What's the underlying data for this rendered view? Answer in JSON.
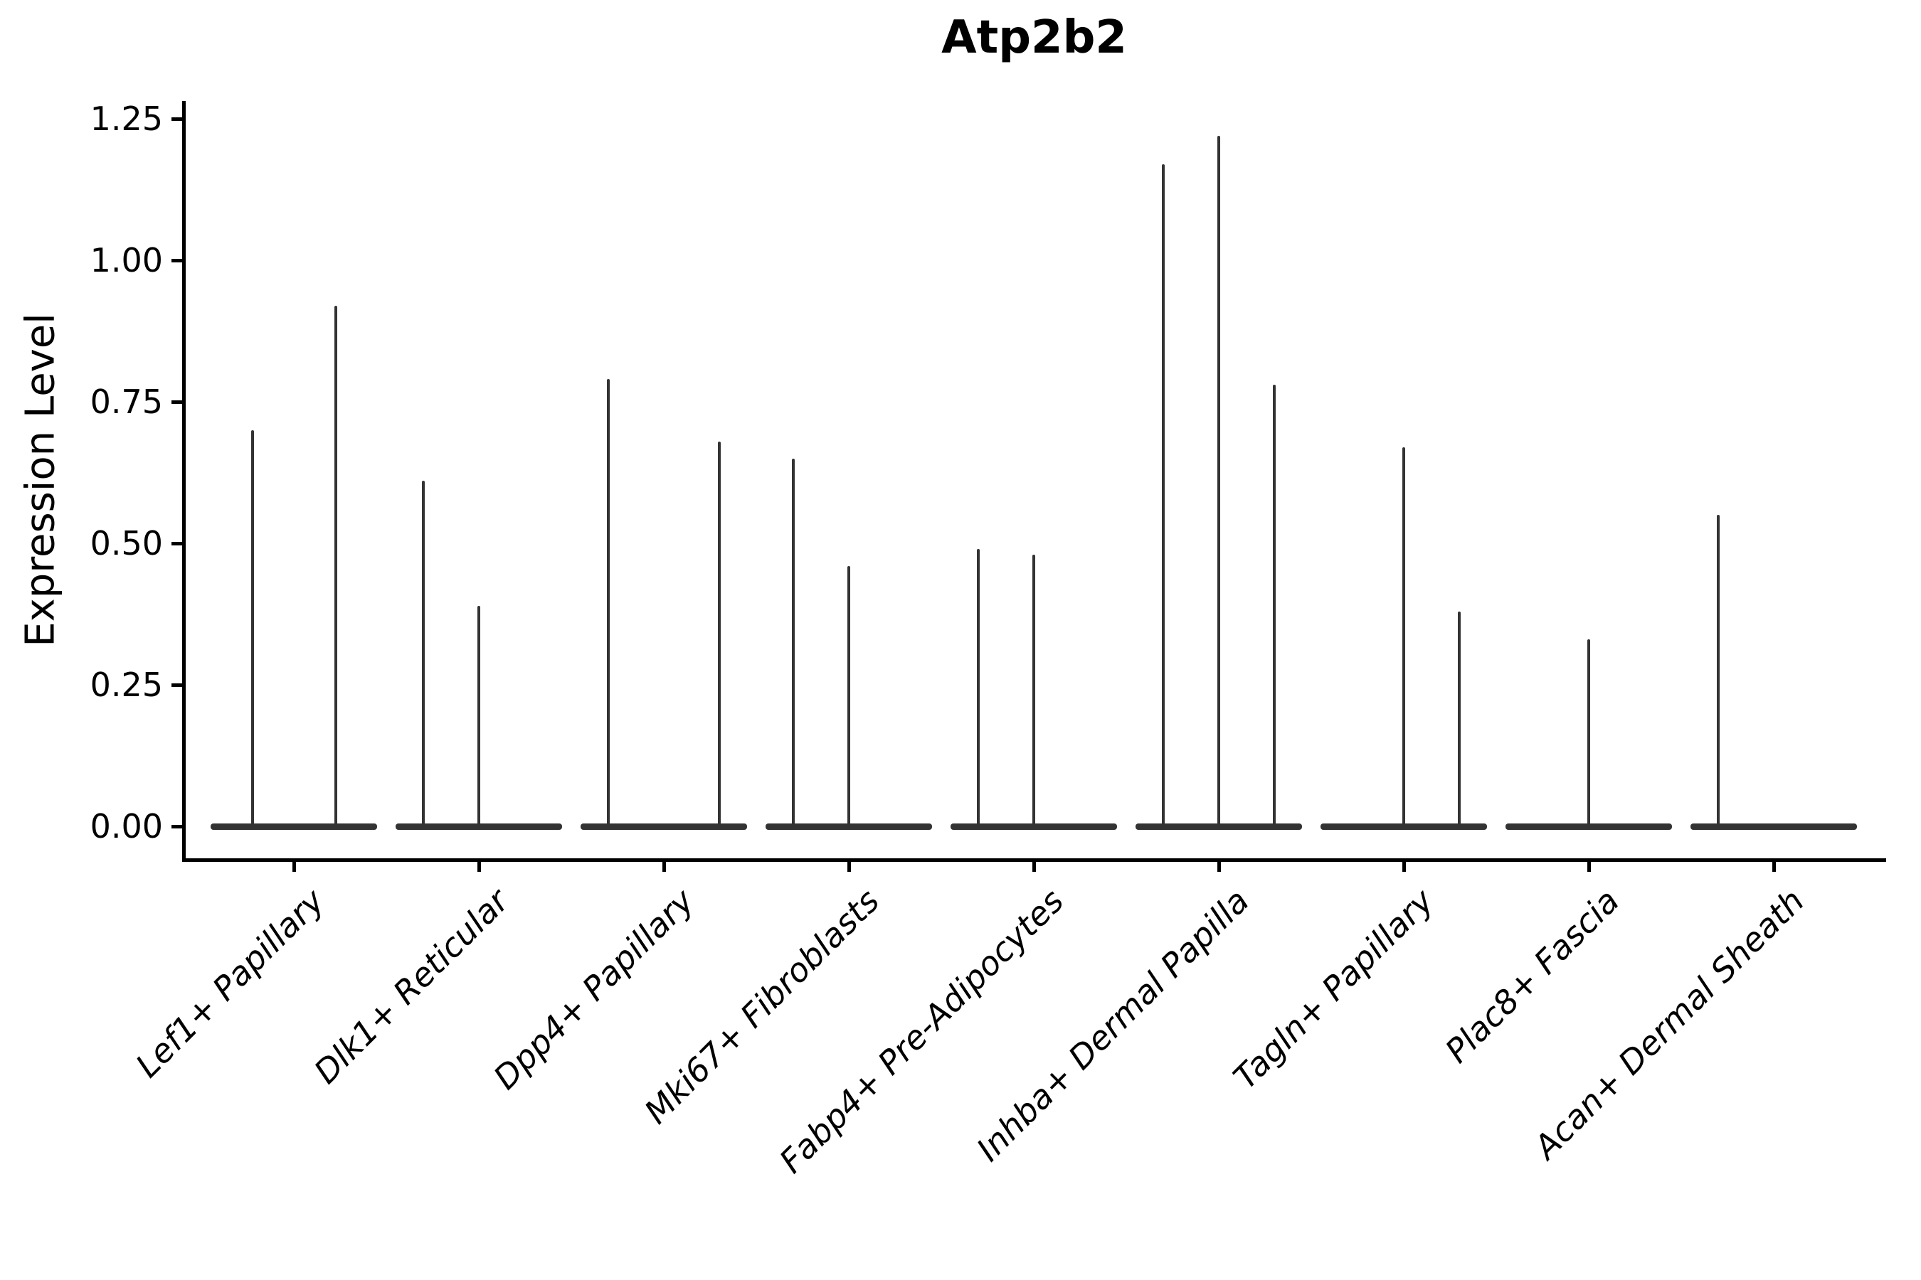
{
  "chart_data": {
    "type": "violin",
    "title": "Atp2b2",
    "ylabel": "Expression Level",
    "xlabel": "",
    "ylim": [
      -0.06,
      1.28
    ],
    "yticks": [
      "0.00",
      "0.25",
      "0.50",
      "0.75",
      "1.00",
      "1.25"
    ],
    "grid": false,
    "legend": "none",
    "categories": [
      "Lef1+ Papillary",
      "Dlk1+ Reticular",
      "Dpp4+ Papillary",
      "Mki67+ Fibroblasts",
      "Fabp4+ Pre-Adipocytes",
      "Inhba+ Dermal Papilla",
      "Tagln+ Papillary",
      "Plac8+ Fascia",
      "Acan+ Dermal Sheath"
    ],
    "violins": [
      {
        "category": "Lef1+ Papillary",
        "spikes": [
          {
            "x_offset": -0.225,
            "max_expression": 0.7
          },
          {
            "x_offset": 0.225,
            "max_expression": 0.92
          }
        ]
      },
      {
        "category": "Dlk1+ Reticular",
        "spikes": [
          {
            "x_offset": -0.3,
            "max_expression": 0.61
          },
          {
            "x_offset": 0.0,
            "max_expression": 0.39
          }
        ]
      },
      {
        "category": "Dpp4+ Papillary",
        "spikes": [
          {
            "x_offset": -0.3,
            "max_expression": 0.79
          },
          {
            "x_offset": 0.3,
            "max_expression": 0.68
          }
        ]
      },
      {
        "category": "Mki67+ Fibroblasts",
        "spikes": [
          {
            "x_offset": -0.3,
            "max_expression": 0.65
          },
          {
            "x_offset": 0.0,
            "max_expression": 0.46
          }
        ]
      },
      {
        "category": "Fabp4+ Pre-Adipocytes",
        "spikes": [
          {
            "x_offset": -0.3,
            "max_expression": 0.49
          },
          {
            "x_offset": 0.0,
            "max_expression": 0.48
          }
        ]
      },
      {
        "category": "Inhba+ Dermal Papilla",
        "spikes": [
          {
            "x_offset": -0.3,
            "max_expression": 1.17
          },
          {
            "x_offset": 0.0,
            "max_expression": 1.22
          },
          {
            "x_offset": 0.3,
            "max_expression": 0.78
          }
        ]
      },
      {
        "category": "Tagln+ Papillary",
        "spikes": [
          {
            "x_offset": 0.0,
            "max_expression": 0.67
          },
          {
            "x_offset": 0.3,
            "max_expression": 0.38
          }
        ]
      },
      {
        "category": "Plac8+ Fascia",
        "spikes": [
          {
            "x_offset": 0.0,
            "max_expression": 0.33
          }
        ]
      },
      {
        "category": "Acan+ Dermal Sheath",
        "spikes": [
          {
            "x_offset": -0.3,
            "max_expression": 0.55
          }
        ]
      }
    ],
    "base_half_width": 0.45,
    "colors": {
      "violin": "#333333",
      "axis": "#000000",
      "text": "#000000"
    }
  }
}
